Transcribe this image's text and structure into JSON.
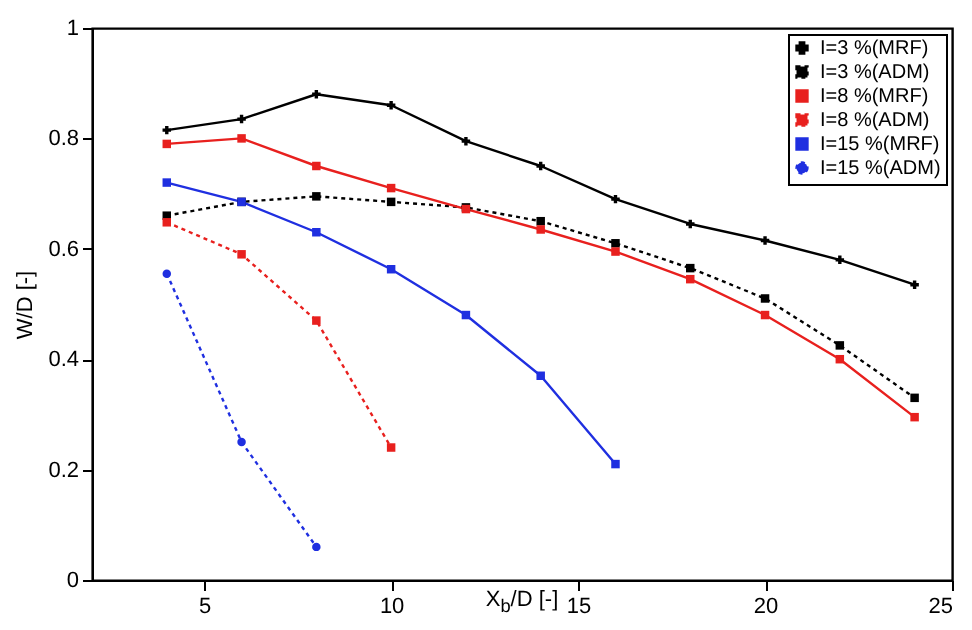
{
  "chart_data": {
    "type": "line",
    "xlabel": "X$_{b}$/D [-]",
    "ylabel": "W/D [-]",
    "xlim": [
      2,
      25
    ],
    "xticks": [
      5,
      10,
      15,
      20,
      25
    ],
    "ylim": [
      0,
      1
    ],
    "yticks": [
      0,
      0.2,
      0.4,
      0.6,
      0.8,
      1
    ],
    "legend": "top right",
    "grid": false,
    "x": [
      4,
      6,
      8,
      10,
      12,
      14,
      16,
      18,
      20,
      22,
      24
    ],
    "series": [
      {
        "name": "I=3 %(MRF)",
        "color": "#000000",
        "marker": "cross",
        "line_style": "solid",
        "values": [
          0.815,
          0.835,
          0.88,
          0.86,
          0.795,
          0.75,
          0.69,
          0.645,
          0.615,
          0.58,
          0.535
        ]
      },
      {
        "name": "I=3 %(ADM)",
        "color": "#000000",
        "marker": "square",
        "line_style": "dotted",
        "values": [
          0.66,
          0.685,
          0.695,
          0.685,
          0.675,
          0.65,
          0.61,
          0.565,
          0.51,
          0.425,
          0.33
        ]
      },
      {
        "name": "I=8 %(MRF)",
        "color": "#e8201e",
        "marker": "square",
        "line_style": "solid",
        "values": [
          0.79,
          0.8,
          0.75,
          0.71,
          0.672,
          0.635,
          0.595,
          0.545,
          0.48,
          0.4,
          0.295
        ]
      },
      {
        "name": "I=8 %(ADM)",
        "color": "#e8201e",
        "marker": "square",
        "line_style": "dotted",
        "x": [
          4,
          6,
          8,
          10
        ],
        "values": [
          0.648,
          0.59,
          0.47,
          0.24
        ]
      },
      {
        "name": "I=15 %(MRF)",
        "color": "#1f2fe0",
        "marker": "square",
        "line_style": "solid",
        "x": [
          4,
          6,
          8,
          10,
          12,
          14,
          16
        ],
        "values": [
          0.72,
          0.685,
          0.63,
          0.563,
          0.48,
          0.37,
          0.21
        ]
      },
      {
        "name": "I=15 %(ADM)",
        "color": "#1f2fe0",
        "marker": "circle",
        "line_style": "dotted",
        "x": [
          4,
          6,
          8
        ],
        "values": [
          0.555,
          0.25,
          0.06
        ]
      }
    ]
  }
}
